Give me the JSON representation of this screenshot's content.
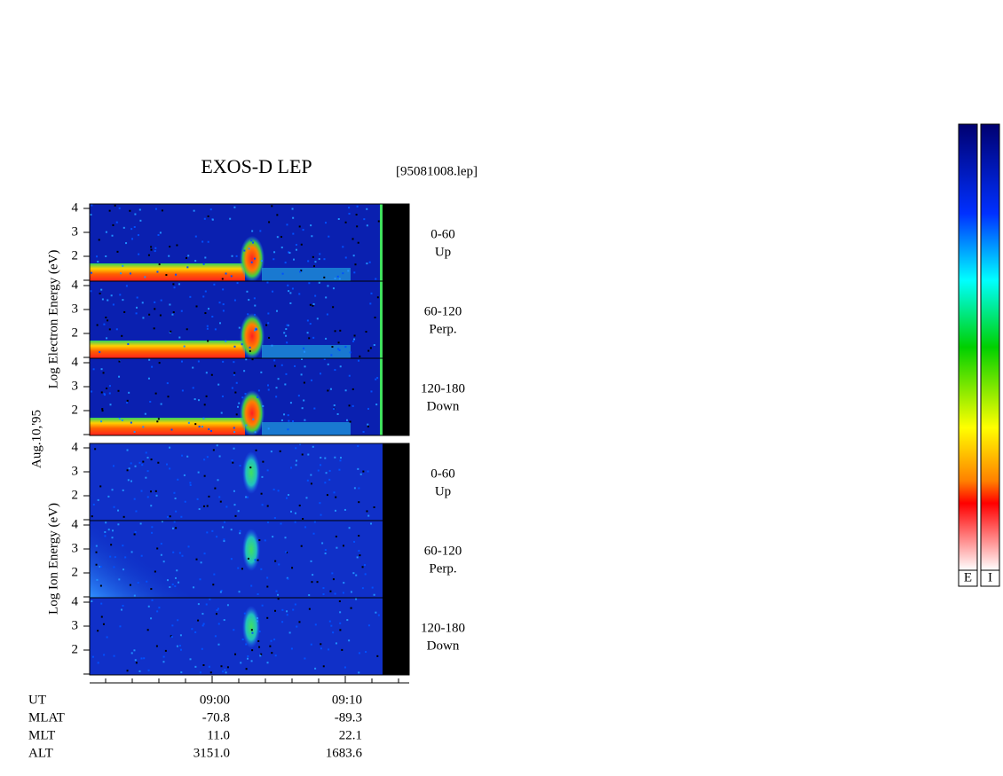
{
  "header": {
    "title": "EXOS-D LEP",
    "file": "[95081008.lep]"
  },
  "date": "Aug.10,'95",
  "groups": [
    {
      "axis_label": "Log  Electron  Energy (eV)",
      "panels": [
        {
          "range": "0-60",
          "dir": "Up"
        },
        {
          "range": "60-120",
          "dir": "Perp."
        },
        {
          "range": "120-180",
          "dir": "Down"
        }
      ]
    },
    {
      "axis_label": "Log  Ion  Energy (eV)",
      "panels": [
        {
          "range": "0-60",
          "dir": "Up"
        },
        {
          "range": "60-120",
          "dir": "Perp."
        },
        {
          "range": "120-180",
          "dir": "Down"
        }
      ]
    }
  ],
  "energy_ticks": [
    2,
    3,
    4
  ],
  "orbit": {
    "rows": [
      [
        "UT",
        "09:00",
        "09:10"
      ],
      [
        "MLAT",
        "-70.8",
        "-89.3"
      ],
      [
        "MLT",
        "11.0",
        "22.1"
      ],
      [
        "ALT",
        "3151.0",
        "1683.6"
      ]
    ]
  },
  "colorbars": [
    "E",
    "I"
  ]
}
